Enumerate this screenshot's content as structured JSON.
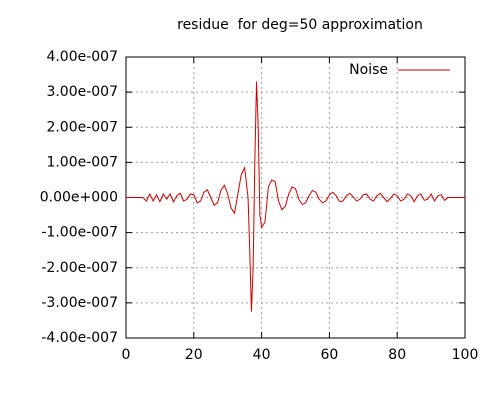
{
  "chart_data": {
    "type": "line",
    "title": "residue  for deg=50 approximation",
    "x": [
      0,
      5,
      6,
      7,
      8,
      9,
      10,
      11,
      12,
      13,
      14,
      15,
      16,
      17,
      18,
      19,
      20,
      21,
      22,
      23,
      24,
      25,
      26,
      27,
      28,
      29,
      30,
      31,
      32,
      33,
      34,
      35,
      36,
      36.5,
      37,
      37.5,
      38,
      38.5,
      39,
      39.5,
      40,
      41,
      42,
      43,
      44,
      45,
      46,
      47,
      48,
      49,
      50,
      51,
      52,
      53,
      54,
      55,
      56,
      57,
      58,
      59,
      60,
      61,
      62,
      63,
      64,
      65,
      66,
      67,
      68,
      69,
      70,
      71,
      72,
      73,
      74,
      75,
      76,
      77,
      78,
      79,
      80,
      81,
      82,
      83,
      84,
      85,
      86,
      87,
      88,
      89,
      90,
      91,
      92,
      93,
      94,
      95,
      100
    ],
    "series": [
      {
        "name": "Noise",
        "color": "#cc0000",
        "values": [
          0,
          0,
          -1e-08,
          1e-08,
          -1e-08,
          8e-09,
          -1.2e-08,
          1e-08,
          -5e-09,
          1e-08,
          -1.2e-08,
          5e-09,
          1.2e-08,
          -1e-08,
          -5e-09,
          1e-08,
          8e-09,
          -1.5e-08,
          -1e-08,
          1.5e-08,
          2.2e-08,
          0,
          -2.2e-08,
          -1.5e-08,
          2e-08,
          3.5e-08,
          1e-08,
          -3e-08,
          -4.5e-08,
          1e-08,
          6.5e-08,
          8.5e-08,
          0,
          -1.5e-07,
          -3.25e-07,
          -2e-07,
          1e-07,
          3.3e-07,
          2e-07,
          -5e-08,
          -8.5e-08,
          -7e-08,
          3e-08,
          5e-08,
          4.5e-08,
          -1e-08,
          -3.5e-08,
          -2.5e-08,
          1e-08,
          3e-08,
          2.5e-08,
          -5e-09,
          -2e-08,
          -1.5e-08,
          5e-09,
          2e-08,
          1.5e-08,
          -5e-09,
          -1.5e-08,
          -1e-08,
          8e-09,
          1.5e-08,
          5e-09,
          -1.2e-08,
          -1e-08,
          5e-09,
          1.2e-08,
          2e-09,
          -1e-08,
          -5e-09,
          8e-09,
          1e-08,
          -5e-09,
          -1e-08,
          5e-09,
          1.2e-08,
          0,
          -1.2e-08,
          -3e-09,
          1e-08,
          5e-09,
          -1e-08,
          -5e-09,
          1e-08,
          5e-09,
          -1.2e-08,
          5e-09,
          1e-08,
          -8e-09,
          -5e-09,
          1e-08,
          -1e-08,
          5e-09,
          8e-09,
          -8e-09,
          0,
          0
        ]
      }
    ],
    "xlim": [
      0,
      100
    ],
    "xticks": [
      0,
      20,
      40,
      60,
      80,
      100
    ],
    "ylim": [
      -4e-07,
      4e-07
    ],
    "yticks": [
      {
        "value": -4e-07,
        "label": "-4.00e-007"
      },
      {
        "value": -3e-07,
        "label": "-3.00e-007"
      },
      {
        "value": -2e-07,
        "label": "-2.00e-007"
      },
      {
        "value": -1e-07,
        "label": "-1.00e-007"
      },
      {
        "value": 0,
        "label": "0.00e+000"
      },
      {
        "value": 1e-07,
        "label": "1.00e-007"
      },
      {
        "value": 2e-07,
        "label": "2.00e-007"
      },
      {
        "value": 3e-07,
        "label": "3.00e-007"
      },
      {
        "value": 4e-07,
        "label": "4.00e-007"
      }
    ],
    "grid": true,
    "legend": "top-right"
  }
}
